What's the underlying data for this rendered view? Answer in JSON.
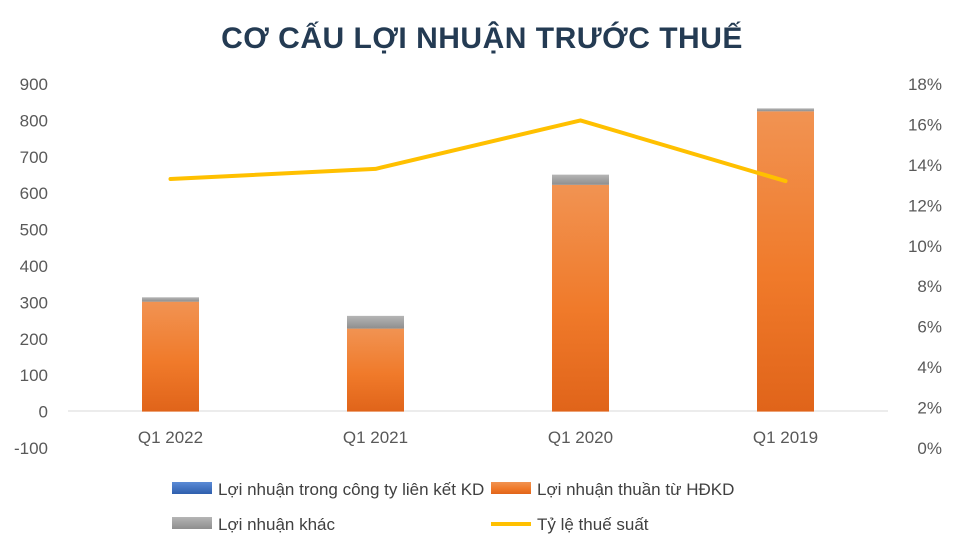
{
  "chart_data": {
    "type": "bar",
    "title": "CƠ CẤU LỢI NHUẬN TRƯỚC THUẾ",
    "categories": [
      "Q1 2022",
      "Q1 2021",
      "Q1 2020",
      "Q1 2019"
    ],
    "stacked": true,
    "series": [
      {
        "name": "Lợi nhuận trong công ty liên kết KD",
        "type": "bar",
        "axis": "left",
        "color": "#4472c4",
        "values": [
          0,
          0,
          0,
          0
        ]
      },
      {
        "name": "Lợi nhuận thuần từ HĐKD",
        "type": "bar",
        "axis": "left",
        "color": "#ed7d31",
        "values": [
          302,
          228,
          623,
          825
        ]
      },
      {
        "name": "Lợi nhuận khác",
        "type": "bar",
        "axis": "left",
        "color": "#a5a5a5",
        "values": [
          12,
          35,
          28,
          8
        ]
      },
      {
        "name": "Tỷ lệ thuế suất",
        "type": "line",
        "axis": "right",
        "color": "#ffc000",
        "values": [
          0.133,
          0.138,
          0.162,
          0.132
        ]
      }
    ],
    "y_left": {
      "min": -100,
      "max": 900,
      "ticks": [
        "-100",
        "0",
        "100",
        "200",
        "300",
        "400",
        "500",
        "600",
        "700",
        "800",
        "900"
      ]
    },
    "y_right": {
      "min": 0,
      "max": 0.18,
      "ticks": [
        "0%",
        "2%",
        "4%",
        "6%",
        "8%",
        "10%",
        "12%",
        "14%",
        "16%",
        "18%"
      ]
    },
    "grid": false,
    "legend_position": "bottom"
  }
}
